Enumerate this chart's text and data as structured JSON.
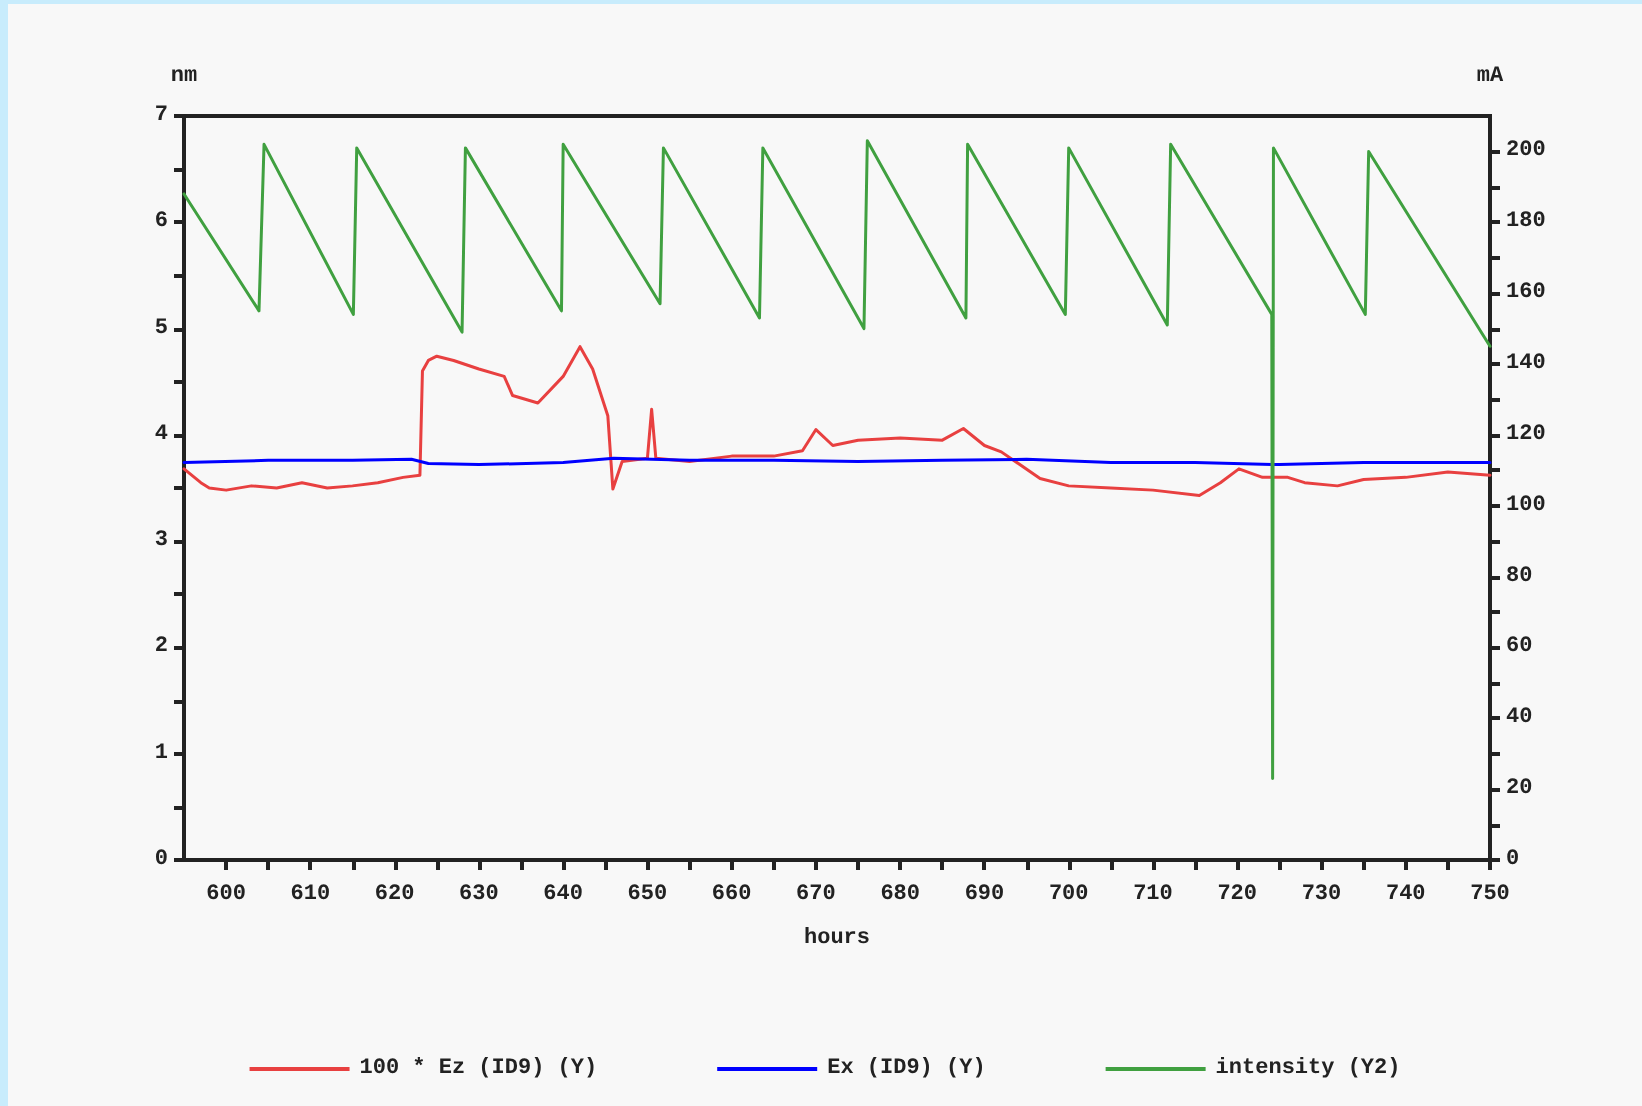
{
  "chart_data": {
    "type": "line",
    "xlabel": "hours",
    "ylabel": "nm",
    "y2label": "mA",
    "xlim": [
      595,
      750
    ],
    "xticks": [
      600,
      {
        "value": 605,
        "label": null
      },
      610,
      {
        "value": 615,
        "label": null
      },
      620,
      {
        "value": 625,
        "label": null
      },
      630,
      {
        "value": 635,
        "label": null
      },
      640,
      {
        "value": 645,
        "label": null
      },
      650,
      {
        "value": 655,
        "label": null
      },
      660,
      {
        "value": 665,
        "label": null
      },
      670,
      {
        "value": 675,
        "label": null
      },
      680,
      {
        "value": 685,
        "label": null
      },
      690,
      {
        "value": 695,
        "label": null
      },
      700,
      {
        "value": 705,
        "label": null
      },
      710,
      {
        "value": 715,
        "label": null
      },
      720,
      {
        "value": 725,
        "label": null
      },
      730,
      {
        "value": 735,
        "label": null
      },
      740,
      {
        "value": 745,
        "label": null
      },
      750
    ],
    "ylim": [
      0,
      7
    ],
    "yticks": [
      0,
      {
        "value": 0.5,
        "label": null
      },
      1,
      {
        "value": 1.5,
        "label": null
      },
      2,
      {
        "value": 2.5,
        "label": null
      },
      3,
      {
        "value": 3.5,
        "label": null
      },
      4,
      {
        "value": 4.5,
        "label": null
      },
      5,
      {
        "value": 5.5,
        "label": null
      },
      6,
      {
        "value": 6.5,
        "label": null
      },
      7
    ],
    "y2lim": [
      0,
      210
    ],
    "y2ticks": [
      0,
      {
        "value": 10,
        "label": null
      },
      20,
      {
        "value": 30,
        "label": null
      },
      40,
      {
        "value": 50,
        "label": null
      },
      60,
      {
        "value": 70,
        "label": null
      },
      80,
      {
        "value": 90,
        "label": null
      },
      100,
      {
        "value": 110,
        "label": null
      },
      120,
      {
        "value": 130,
        "label": null
      },
      140,
      {
        "value": 150,
        "label": null
      },
      160,
      {
        "value": 170,
        "label": null
      },
      180,
      {
        "value": 190,
        "label": null
      },
      200
    ],
    "grid": false,
    "legend": "bottom",
    "marker": "none",
    "line_style": "solid",
    "series": [
      {
        "name": "100 * Ez (ID9) (Y)",
        "color": "#e84040",
        "x": [
          595,
          597,
          598,
          600,
          603,
          606,
          609,
          612,
          615,
          618,
          621,
          623,
          623.3,
          624,
          625,
          627,
          630,
          633,
          634,
          637,
          640,
          642,
          643.5,
          645.3,
          645.9,
          647,
          650,
          650.5,
          651,
          655,
          660,
          665,
          668.4,
          670,
          672,
          675,
          680,
          685,
          687.5,
          690,
          692,
          696.6,
          700,
          705,
          710,
          715.5,
          718,
          720.2,
          723,
          726,
          728,
          731.9,
          735,
          740,
          745,
          750
        ],
        "values": [
          3.68,
          3.55,
          3.5,
          3.48,
          3.52,
          3.5,
          3.55,
          3.5,
          3.52,
          3.55,
          3.6,
          3.62,
          4.6,
          4.7,
          4.74,
          4.7,
          4.62,
          4.55,
          4.37,
          4.3,
          4.55,
          4.83,
          4.62,
          4.18,
          3.49,
          3.75,
          3.78,
          4.24,
          3.78,
          3.75,
          3.8,
          3.8,
          3.85,
          4.05,
          3.9,
          3.95,
          3.97,
          3.95,
          4.06,
          3.9,
          3.84,
          3.59,
          3.52,
          3.5,
          3.48,
          3.43,
          3.55,
          3.68,
          3.6,
          3.6,
          3.55,
          3.52,
          3.58,
          3.6,
          3.65,
          3.62
        ]
      },
      {
        "name": "Ex (ID9) (Y)",
        "color": "#0000ff",
        "x": [
          595,
          605,
          615,
          622,
          624,
          630,
          640,
          646,
          655,
          665,
          675,
          685,
          695,
          705,
          715,
          725,
          735,
          750
        ],
        "values": [
          3.74,
          3.76,
          3.76,
          3.77,
          3.73,
          3.72,
          3.74,
          3.78,
          3.76,
          3.76,
          3.75,
          3.76,
          3.77,
          3.74,
          3.74,
          3.72,
          3.74,
          3.74
        ]
      },
      {
        "name": "intensity (Y2)",
        "color": "#40a040",
        "axis": "y2",
        "x": [
          595,
          603.9,
          604.5,
          615.1,
          615.5,
          628.0,
          628.4,
          639.8,
          640.0,
          651.5,
          651.9,
          663.3,
          663.7,
          675.7,
          676.1,
          687.8,
          688.0,
          699.6,
          700.0,
          711.7,
          712.1,
          724.1,
          724.2,
          724.3,
          735.2,
          735.6,
          750
        ],
        "values": [
          188,
          155,
          202,
          154,
          201,
          149,
          201,
          155,
          202,
          157,
          201,
          153,
          201,
          150,
          203,
          153,
          202,
          154,
          201,
          151,
          202,
          154,
          23,
          201,
          154,
          200,
          145
        ]
      }
    ]
  }
}
